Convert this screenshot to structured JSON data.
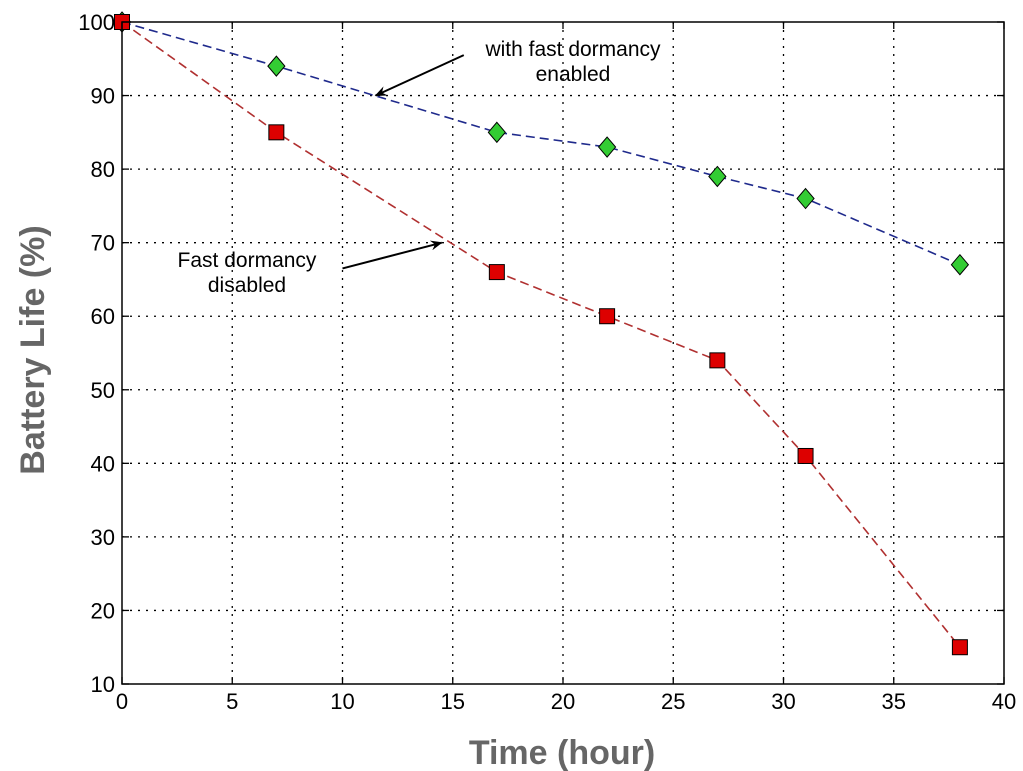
{
  "chart_data": {
    "type": "line",
    "title": "",
    "xlabel": "Time (hour)",
    "ylabel": "Battery Life (%)",
    "xlim": [
      0,
      40
    ],
    "ylim": [
      10,
      100
    ],
    "xticks": [
      0,
      5,
      10,
      15,
      20,
      25,
      30,
      35,
      40
    ],
    "yticks": [
      10,
      20,
      30,
      40,
      50,
      60,
      70,
      80,
      90,
      100
    ],
    "grid": true,
    "series": [
      {
        "key": "enabled",
        "x": [
          0,
          7,
          17,
          22,
          27,
          31,
          38
        ],
        "y": [
          100,
          94,
          85,
          83,
          79,
          76,
          67
        ],
        "line_color": "#1f2a8c",
        "marker": "diamond",
        "marker_color": "#33cc33"
      },
      {
        "key": "disabled",
        "x": [
          0,
          7,
          17,
          22,
          27,
          31,
          38
        ],
        "y": [
          100,
          85,
          66,
          60,
          54,
          41,
          15
        ],
        "line_color": "#b03030",
        "marker": "square",
        "marker_color": "#dd0000"
      }
    ],
    "annotations": [
      {
        "series": "enabled",
        "lines": [
          "with fast dormancy",
          "enabled"
        ],
        "target": [
          11.5,
          90
        ],
        "from": [
          15.5,
          95.5
        ]
      },
      {
        "series": "disabled",
        "lines": [
          "Fast dormancy",
          "disabled"
        ],
        "target": [
          14.5,
          70
        ],
        "from": [
          10,
          66.5
        ]
      }
    ]
  }
}
